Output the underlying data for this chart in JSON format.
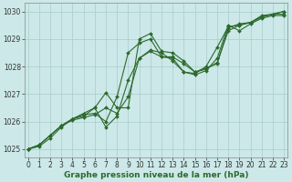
{
  "x": [
    0,
    1,
    2,
    3,
    4,
    5,
    6,
    7,
    8,
    9,
    10,
    11,
    12,
    13,
    14,
    15,
    16,
    17,
    18,
    19,
    20,
    21,
    22,
    23
  ],
  "series": [
    [
      1025.0,
      1025.1,
      1025.4,
      1025.8,
      1026.1,
      1026.2,
      1026.5,
      1025.8,
      1026.2,
      1027.5,
      1028.3,
      1028.6,
      1028.5,
      1028.2,
      1027.8,
      1027.7,
      1027.85,
      1028.3,
      1029.5,
      1029.3,
      1029.55,
      1029.75,
      1029.85,
      1029.85
    ],
    [
      1025.0,
      1025.15,
      1025.5,
      1025.85,
      1026.1,
      1026.3,
      1026.5,
      1027.05,
      1026.5,
      1026.5,
      1029.0,
      1029.2,
      1028.55,
      1028.5,
      1028.2,
      1027.8,
      1027.95,
      1028.1,
      1029.4,
      1029.55,
      1029.6,
      1029.8,
      1029.9,
      1030.0
    ],
    [
      1025.0,
      1025.15,
      1025.5,
      1025.85,
      1026.1,
      1026.25,
      1026.3,
      1026.0,
      1026.9,
      1028.5,
      1028.85,
      1029.0,
      1028.35,
      1028.3,
      1027.8,
      1027.75,
      1028.0,
      1028.7,
      1029.45,
      1029.5,
      1029.6,
      1029.8,
      1029.9,
      1029.9
    ],
    [
      1025.0,
      1025.15,
      1025.5,
      1025.85,
      1026.05,
      1026.15,
      1026.25,
      1026.5,
      1026.3,
      1026.9,
      1028.3,
      1028.55,
      1028.35,
      1028.35,
      1028.1,
      1027.8,
      1027.9,
      1028.15,
      1029.3,
      1029.5,
      1029.6,
      1029.85,
      1029.9,
      1030.0
    ]
  ],
  "line_color": "#2d6a2d",
  "marker": "D",
  "markersize": 2.0,
  "linewidth": 0.8,
  "bg_color": "#cce8e8",
  "grid_color": "#aacccc",
  "ylabel_ticks": [
    1025,
    1026,
    1027,
    1028,
    1029,
    1030
  ],
  "xticks": [
    0,
    1,
    2,
    3,
    4,
    5,
    6,
    7,
    8,
    9,
    10,
    11,
    12,
    13,
    14,
    15,
    16,
    17,
    18,
    19,
    20,
    21,
    22,
    23
  ],
  "xlabel": "Graphe pression niveau de la mer (hPa)",
  "xlim": [
    -0.3,
    23.3
  ],
  "ylim": [
    1024.7,
    1030.3
  ],
  "tick_fontsize": 5.5,
  "xlabel_fontsize": 6.5
}
